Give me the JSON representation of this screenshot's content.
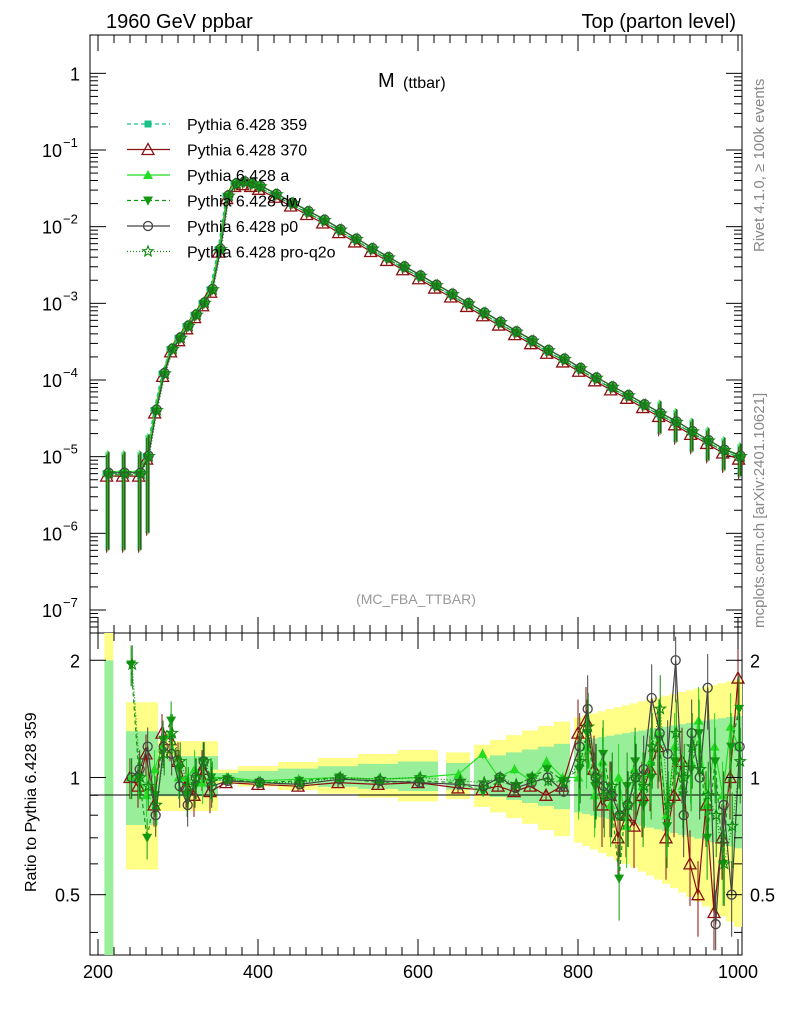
{
  "header": {
    "left": "1960 GeV ppbar",
    "right": "Top (parton level)"
  },
  "side_labels": {
    "rivet": "Rivet 4.1.0, ≥ 100k events",
    "mcplots": "mcplots.cern.ch [arXiv:2401.10621]"
  },
  "chart_data": {
    "type": "line",
    "title_main": "M",
    "title_sub": "(ttbar)",
    "analysis_tag": "(MC_FBA_TTBAR)",
    "xlabel": "",
    "xlim": [
      190,
      1005
    ],
    "x_ticks": [
      "200",
      "400",
      "600",
      "800",
      "1000"
    ],
    "main_panel": {
      "yscale": "log",
      "ylim_exp": [
        -7.3,
        0.5
      ],
      "y_ticks": [
        {
          "base": "1",
          "exp": ""
        },
        {
          "base": "10",
          "exp": "−1"
        },
        {
          "base": "10",
          "exp": "−2"
        },
        {
          "base": "10",
          "exp": "−3"
        },
        {
          "base": "10",
          "exp": "−4"
        },
        {
          "base": "10",
          "exp": "−5"
        },
        {
          "base": "10",
          "exp": "−6"
        },
        {
          "base": "10",
          "exp": "−7"
        }
      ]
    },
    "ratio_panel": {
      "ylabel": "Ratio to Pythia 6.428 359",
      "ylim": [
        0.35,
        2.35
      ],
      "y_ticks": [
        "2",
        "1",
        "0.5"
      ]
    },
    "series": [
      {
        "name": "Pythia 6.428 359",
        "color": "#19c08a",
        "marker": "square",
        "dash": "4,3"
      },
      {
        "name": "Pythia 6.428 370",
        "color": "#8b1010",
        "marker": "triangle-open",
        "dash": ""
      },
      {
        "name": "Pythia 6.428 a",
        "color": "#22dd22",
        "marker": "triangle",
        "dash": ""
      },
      {
        "name": "Pythia 6.428 dw",
        "color": "#119911",
        "marker": "triangle-down",
        "dash": "4,3"
      },
      {
        "name": "Pythia 6.428 p0",
        "color": "#444444",
        "marker": "circle-open",
        "dash": ""
      },
      {
        "name": "Pythia 6.428 pro-q2o",
        "color": "#118811",
        "marker": "star",
        "dash": "1,2"
      }
    ],
    "x": [
      210,
      230,
      250,
      260,
      270,
      280,
      290,
      300,
      310,
      320,
      330,
      340,
      350,
      360,
      370,
      380,
      390,
      400,
      420,
      440,
      460,
      480,
      500,
      520,
      540,
      560,
      580,
      600,
      620,
      640,
      660,
      680,
      700,
      720,
      740,
      760,
      780,
      800,
      820,
      840,
      860,
      880,
      900,
      920,
      940,
      960,
      980,
      1000
    ],
    "values": [
      6e-06,
      6e-06,
      6e-06,
      1e-05,
      4e-05,
      0.00012,
      0.00025,
      0.00035,
      0.0005,
      0.0007,
      0.001,
      0.0015,
      0.005,
      0.025,
      0.036,
      0.038,
      0.036,
      0.033,
      0.026,
      0.02,
      0.0155,
      0.012,
      0.009,
      0.0068,
      0.0051,
      0.0039,
      0.00295,
      0.00225,
      0.0017,
      0.0013,
      0.00098,
      0.00074,
      0.00056,
      0.00042,
      0.00032,
      0.00024,
      0.000185,
      0.00014,
      0.000105,
      8e-05,
      6.2e-05,
      4.7e-05,
      3.6e-05,
      2.8e-05,
      2.1e-05,
      1.6e-05,
      1.2e-05,
      1e-05
    ],
    "ratio": {
      "x": [
        240,
        250,
        260,
        270,
        280,
        290,
        300,
        310,
        320,
        330,
        340,
        360,
        400,
        450,
        500,
        550,
        600,
        650,
        680,
        700,
        720,
        740,
        760,
        780,
        800,
        810,
        820,
        830,
        840,
        850,
        860,
        870,
        880,
        890,
        900,
        910,
        920,
        930,
        940,
        950,
        960,
        970,
        980,
        990,
        1000
      ],
      "series": [
        {
          "name": "Pythia 6.428 370",
          "values": [
            1.0,
            0.95,
            1.15,
            0.85,
            1.3,
            1.25,
            1.1,
            0.95,
            0.9,
            1.05,
            0.92,
            0.97,
            0.96,
            0.95,
            0.97,
            0.96,
            0.97,
            0.94,
            0.93,
            0.95,
            0.92,
            0.95,
            0.9,
            0.95,
            1.3,
            1.4,
            1.05,
            0.85,
            0.9,
            0.7,
            0.8,
            0.75,
            0.9,
            1.05,
            1.2,
            0.7,
            0.9,
            1.1,
            0.6,
            0.5,
            0.85,
            0.45,
            0.7,
            1.0,
            1.8
          ]
        },
        {
          "name": "Pythia 6.428 a",
          "values": [
            1.0,
            1.0,
            0.9,
            1.05,
            1.2,
            1.3,
            1.0,
            1.0,
            1.05,
            0.97,
            1.0,
            1.0,
            0.98,
            0.99,
            1.0,
            0.99,
            1.0,
            1.02,
            1.15,
            1.0,
            1.05,
            0.98,
            1.1,
            1.0,
            1.0,
            1.2,
            0.9,
            1.1,
            0.85,
            1.0,
            0.75,
            1.05,
            0.95,
            1.1,
            1.3,
            0.8,
            1.2,
            0.95,
            1.1,
            1.4,
            0.85,
            1.2,
            0.9,
            1.35,
            1.2
          ]
        },
        {
          "name": "Pythia 6.428 dw",
          "values": [
            1.95,
            1.0,
            0.7,
            0.9,
            1.25,
            1.4,
            1.05,
            0.9,
            0.95,
            1.1,
            1.0,
            0.99,
            0.97,
            0.98,
            1.0,
            0.97,
            0.98,
            0.97,
            0.92,
            0.98,
            0.95,
            1.0,
            1.05,
            0.98,
            1.05,
            1.3,
            0.95,
            1.15,
            0.9,
            0.55,
            0.95,
            1.1,
            0.85,
            1.0,
            1.25,
            0.75,
            1.1,
            0.9,
            1.05,
            1.3,
            0.7,
            1.1,
            0.6,
            1.2,
            1.5
          ]
        },
        {
          "name": "Pythia 6.428 p0",
          "values": [
            1.0,
            1.05,
            1.2,
            0.8,
            1.2,
            1.15,
            0.95,
            0.85,
            1.0,
            1.1,
            0.95,
            0.98,
            0.97,
            0.96,
            0.99,
            0.98,
            0.97,
            0.96,
            0.95,
            1.0,
            0.94,
            0.97,
            1.0,
            0.92,
            1.2,
            1.5,
            1.0,
            0.95,
            0.9,
            0.8,
            0.85,
            1.0,
            1.05,
            1.6,
            1.3,
            1.15,
            2.0,
            0.8,
            1.3,
            1.0,
            1.7,
            0.42,
            0.85,
            0.5,
            1.2
          ]
        },
        {
          "name": "Pythia 6.428 pro-q2o",
          "values": [
            1.95,
            1.0,
            0.95,
            0.85,
            1.15,
            1.3,
            1.1,
            0.95,
            1.0,
            1.1,
            0.98,
            0.99,
            0.97,
            0.97,
            1.0,
            0.99,
            1.0,
            0.98,
            0.97,
            1.0,
            0.96,
            1.0,
            0.98,
            0.97,
            1.1,
            1.35,
            1.0,
            0.9,
            0.95,
            0.8,
            0.85,
            1.0,
            0.95,
            1.2,
            1.5,
            0.85,
            1.3,
            1.0,
            1.2,
            1.05,
            0.9,
            0.8,
            0.6,
            0.75,
            1.1
          ]
        }
      ]
    }
  }
}
